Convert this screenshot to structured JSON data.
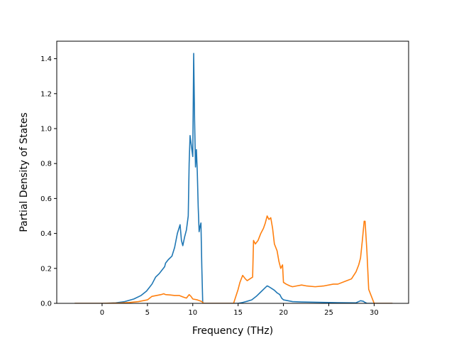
{
  "chart_data": {
    "type": "line",
    "title": "",
    "xlabel": "Frequency (THz)",
    "ylabel": "Partial Density of States",
    "xlim": [
      -5.0,
      33.8
    ],
    "ylim": [
      0.0,
      1.5
    ],
    "xticks": [
      0,
      5,
      10,
      15,
      20,
      25,
      30
    ],
    "yticks": [
      0.0,
      0.2,
      0.4,
      0.6,
      0.8,
      1.0,
      1.2,
      1.4
    ],
    "xtick_labels": [
      "0",
      "5",
      "10",
      "15",
      "20",
      "25",
      "30"
    ],
    "ytick_labels": [
      "0.0",
      "0.2",
      "0.4",
      "0.6",
      "0.8",
      "1.0",
      "1.2",
      "1.4"
    ],
    "grid": false,
    "legend": "none",
    "series": [
      {
        "color": "#1f77b4",
        "x": [
          -3.0,
          0.0,
          1.5,
          2.5,
          3.5,
          4.3,
          4.9,
          5.2,
          5.5,
          5.9,
          6.3,
          6.6,
          6.9,
          7.0,
          7.3,
          7.7,
          8.0,
          8.3,
          8.6,
          8.75,
          8.9,
          9.1,
          9.3,
          9.5,
          9.6,
          9.7,
          9.8,
          9.9,
          10.0,
          10.1,
          10.2,
          10.3,
          10.4,
          10.5,
          10.6,
          10.7,
          10.8,
          10.9,
          11.0,
          11.1,
          11.15,
          11.3,
          14.5,
          15.0,
          15.5,
          16.0,
          16.5,
          17.0,
          17.5,
          18.0,
          18.2,
          18.4,
          18.7,
          19.0,
          19.3,
          19.6,
          19.8,
          20.0,
          20.5,
          21.0,
          22.0,
          24.0,
          26.0,
          28.0,
          28.5,
          28.8,
          29.0,
          29.2,
          30.0,
          32.0
        ],
        "y": [
          0.0,
          0.0,
          0.003,
          0.01,
          0.025,
          0.045,
          0.07,
          0.09,
          0.11,
          0.15,
          0.17,
          0.19,
          0.21,
          0.23,
          0.25,
          0.27,
          0.32,
          0.4,
          0.45,
          0.36,
          0.33,
          0.38,
          0.42,
          0.5,
          0.8,
          0.96,
          0.92,
          0.88,
          0.84,
          1.43,
          1.05,
          0.78,
          0.88,
          0.75,
          0.55,
          0.41,
          0.44,
          0.46,
          0.2,
          0.0,
          0.0,
          0.0,
          0.0,
          0.0,
          0.005,
          0.012,
          0.02,
          0.04,
          0.065,
          0.09,
          0.1,
          0.095,
          0.085,
          0.075,
          0.06,
          0.05,
          0.03,
          0.02,
          0.015,
          0.01,
          0.008,
          0.006,
          0.004,
          0.003,
          0.015,
          0.012,
          0.005,
          0.0,
          0.0,
          0.0
        ]
      },
      {
        "color": "#ff7f0e",
        "x": [
          -3.0,
          0.0,
          2.0,
          3.0,
          4.0,
          5.0,
          5.5,
          6.0,
          6.5,
          6.8,
          7.0,
          7.5,
          8.0,
          8.5,
          9.0,
          9.3,
          9.6,
          9.8,
          10.0,
          10.5,
          11.0,
          11.2,
          11.5,
          14.5,
          15.0,
          15.2,
          15.5,
          15.8,
          16.0,
          16.3,
          16.6,
          16.7,
          16.9,
          17.2,
          17.5,
          17.8,
          18.0,
          18.2,
          18.4,
          18.6,
          18.8,
          19.0,
          19.3,
          19.5,
          19.7,
          19.9,
          20.0,
          20.3,
          20.7,
          21.0,
          21.5,
          22.0,
          22.5,
          23.5,
          24.5,
          25.5,
          26.0,
          27.0,
          27.5,
          28.0,
          28.3,
          28.5,
          28.7,
          28.9,
          29.0,
          29.2,
          29.4,
          30.0,
          32.0
        ],
        "y": [
          0.0,
          0.0,
          0.002,
          0.005,
          0.01,
          0.02,
          0.04,
          0.045,
          0.05,
          0.055,
          0.05,
          0.048,
          0.045,
          0.045,
          0.035,
          0.03,
          0.05,
          0.04,
          0.025,
          0.02,
          0.01,
          0.0,
          0.0,
          0.0,
          0.08,
          0.12,
          0.16,
          0.14,
          0.13,
          0.14,
          0.15,
          0.36,
          0.34,
          0.36,
          0.4,
          0.43,
          0.46,
          0.5,
          0.48,
          0.49,
          0.43,
          0.34,
          0.3,
          0.24,
          0.2,
          0.22,
          0.12,
          0.11,
          0.1,
          0.095,
          0.1,
          0.105,
          0.1,
          0.095,
          0.1,
          0.11,
          0.11,
          0.13,
          0.14,
          0.18,
          0.22,
          0.26,
          0.36,
          0.47,
          0.47,
          0.3,
          0.08,
          0.0,
          0.0
        ]
      }
    ]
  }
}
